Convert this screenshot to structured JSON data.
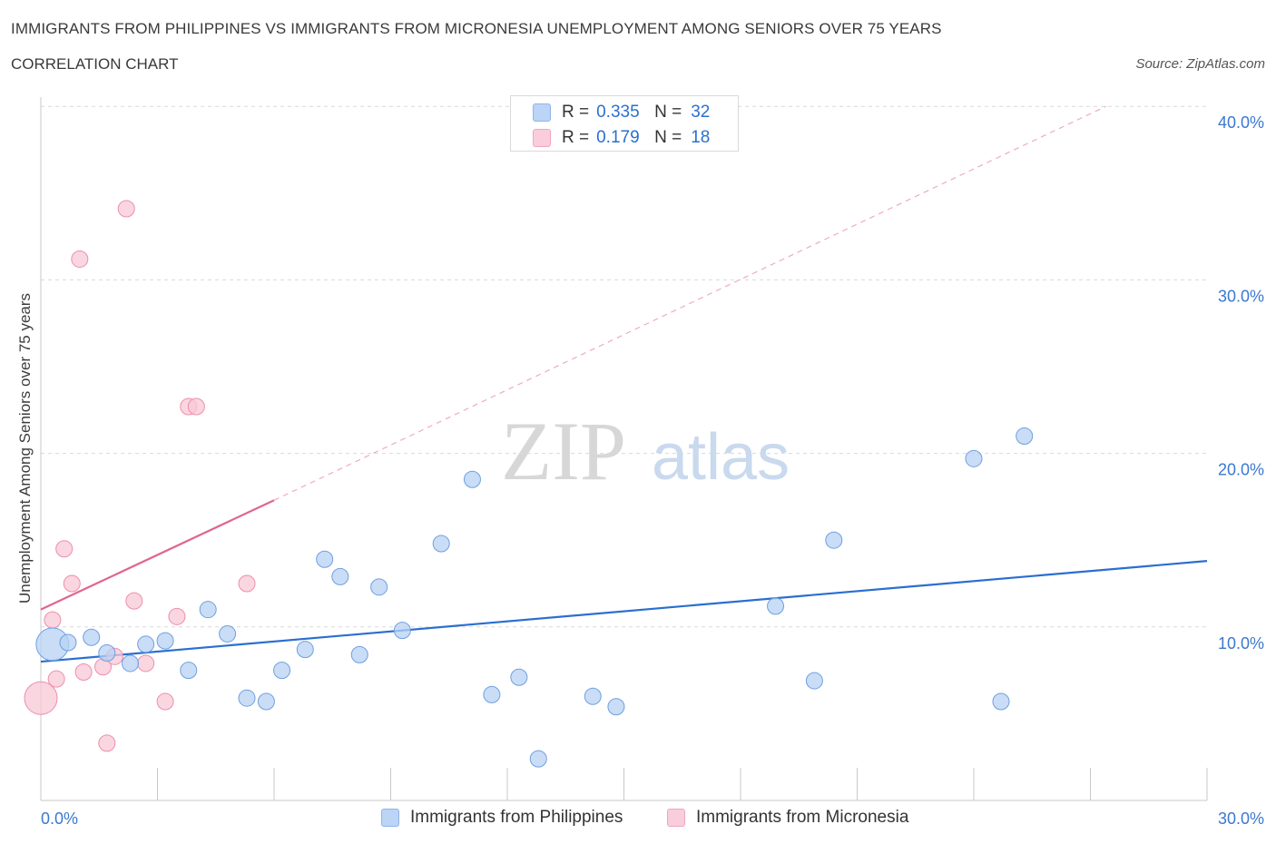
{
  "header": {
    "title": "IMMIGRANTS FROM PHILIPPINES VS IMMIGRANTS FROM MICRONESIA UNEMPLOYMENT AMONG SENIORS OVER 75 YEARS",
    "subtitle": "CORRELATION CHART",
    "source": "Source: ZipAtlas.com"
  },
  "watermark": {
    "zip": "ZIP",
    "atlas": "atlas"
  },
  "legend_top": {
    "rows": [
      {
        "r_label": "R =",
        "r_value": "0.335",
        "n_label": "N =",
        "n_value": "32",
        "color": "#a9c8f2"
      },
      {
        "r_label": "R =",
        "r_value": "0.179",
        "n_label": "N =",
        "n_value": "18",
        "color": "#f6bfd1"
      }
    ]
  },
  "legend_bottom": {
    "items": [
      {
        "label": "Immigrants from Philippines",
        "color": "#a9c8f2"
      },
      {
        "label": "Immigrants from Micronesia",
        "color": "#f6bfd1"
      }
    ]
  },
  "colors": {
    "philippines_fill": "#b7d1f3",
    "philippines_stroke": "#6f9fe0",
    "philippines_line": "#2a6fd0",
    "micronesia_fill": "#f8c8d7",
    "micronesia_stroke": "#ec8fad",
    "micronesia_line": "#e0668f",
    "grid": "#d9d9d9",
    "tick_text": "#3b78d0"
  },
  "chart_data": {
    "type": "scatter",
    "title": "IMMIGRANTS FROM PHILIPPINES VS IMMIGRANTS FROM MICRONESIA UNEMPLOYMENT AMONG SENIORS OVER 75 YEARS",
    "subtitle": "CORRELATION CHART",
    "xlabel": "",
    "ylabel": "Unemployment Among Seniors over 75 years",
    "xlim": [
      0,
      30
    ],
    "ylim": [
      0,
      40
    ],
    "x_tick_labels": [
      "0.0%",
      "30.0%"
    ],
    "x_tick_values": [
      0,
      30
    ],
    "y_tick_labels": [
      "10.0%",
      "20.0%",
      "30.0%",
      "40.0%"
    ],
    "y_tick_values": [
      10,
      20,
      30,
      40
    ],
    "grid": true,
    "legend_placement": "bottom",
    "series": [
      {
        "name": "Immigrants from Philippines",
        "R": 0.335,
        "N": 32,
        "trend": {
          "x": [
            0,
            30
          ],
          "y": [
            8.0,
            13.8
          ],
          "style": "solid"
        },
        "points": [
          {
            "x": 0.3,
            "y": 9.0,
            "big": true
          },
          {
            "x": 0.7,
            "y": 9.1
          },
          {
            "x": 1.3,
            "y": 9.4
          },
          {
            "x": 1.7,
            "y": 8.5
          },
          {
            "x": 2.3,
            "y": 7.9
          },
          {
            "x": 2.7,
            "y": 9.0
          },
          {
            "x": 3.2,
            "y": 9.2
          },
          {
            "x": 3.8,
            "y": 7.5
          },
          {
            "x": 4.3,
            "y": 11.0
          },
          {
            "x": 4.8,
            "y": 9.6
          },
          {
            "x": 5.3,
            "y": 5.9
          },
          {
            "x": 5.8,
            "y": 5.7
          },
          {
            "x": 6.2,
            "y": 7.5
          },
          {
            "x": 6.8,
            "y": 8.7
          },
          {
            "x": 7.3,
            "y": 13.9
          },
          {
            "x": 7.7,
            "y": 12.9
          },
          {
            "x": 8.2,
            "y": 8.4
          },
          {
            "x": 8.7,
            "y": 12.3
          },
          {
            "x": 9.3,
            "y": 9.8
          },
          {
            "x": 10.3,
            "y": 14.8
          },
          {
            "x": 11.1,
            "y": 18.5
          },
          {
            "x": 11.6,
            "y": 6.1
          },
          {
            "x": 12.3,
            "y": 7.1
          },
          {
            "x": 12.8,
            "y": 2.4
          },
          {
            "x": 14.2,
            "y": 6.0
          },
          {
            "x": 14.8,
            "y": 5.4
          },
          {
            "x": 18.9,
            "y": 11.2
          },
          {
            "x": 19.9,
            "y": 6.9
          },
          {
            "x": 20.4,
            "y": 15.0
          },
          {
            "x": 24.0,
            "y": 19.7
          },
          {
            "x": 24.7,
            "y": 5.7
          },
          {
            "x": 25.3,
            "y": 21.0
          }
        ]
      },
      {
        "name": "Immigrants from Micronesia",
        "R": 0.179,
        "N": 18,
        "trend_solid": {
          "x": [
            0,
            6.0
          ],
          "y": [
            11.0,
            17.3
          ]
        },
        "trend_dashed": {
          "x": [
            6.0,
            27.4
          ],
          "y": [
            17.3,
            40.0
          ]
        },
        "points": [
          {
            "x": 0.0,
            "y": 5.9,
            "big": true
          },
          {
            "x": 0.3,
            "y": 10.4
          },
          {
            "x": 0.4,
            "y": 7.0
          },
          {
            "x": 0.6,
            "y": 14.5
          },
          {
            "x": 0.8,
            "y": 12.5
          },
          {
            "x": 1.0,
            "y": 31.2
          },
          {
            "x": 1.1,
            "y": 7.4
          },
          {
            "x": 1.6,
            "y": 7.7
          },
          {
            "x": 1.7,
            "y": 3.3
          },
          {
            "x": 1.9,
            "y": 8.3
          },
          {
            "x": 2.2,
            "y": 34.1
          },
          {
            "x": 2.4,
            "y": 11.5
          },
          {
            "x": 2.7,
            "y": 7.9
          },
          {
            "x": 3.2,
            "y": 5.7
          },
          {
            "x": 3.5,
            "y": 10.6
          },
          {
            "x": 3.8,
            "y": 22.7
          },
          {
            "x": 4.0,
            "y": 22.7
          },
          {
            "x": 5.3,
            "y": 12.5
          }
        ]
      }
    ]
  }
}
